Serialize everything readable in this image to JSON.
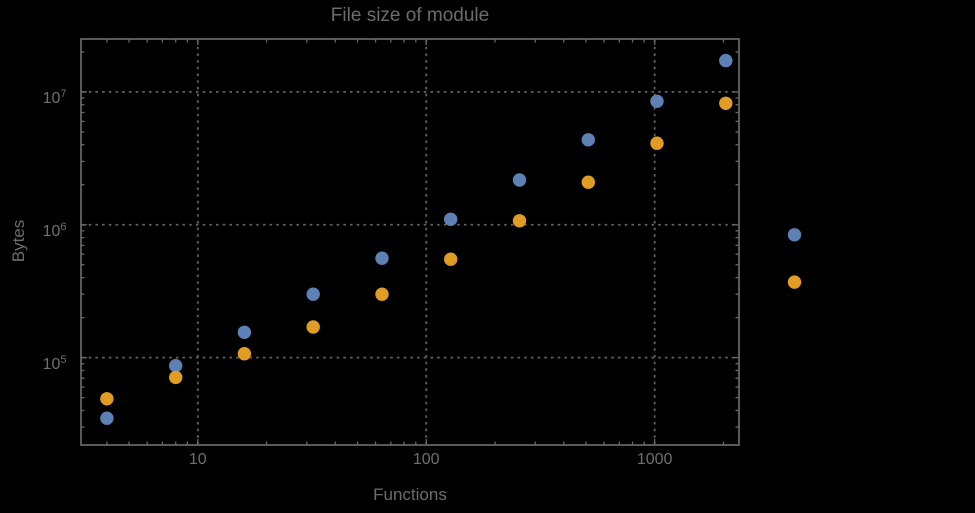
{
  "title": "File size of module",
  "colors": {
    "background": "#000000",
    "frame": "#696969",
    "grid": "#616161",
    "text": "#6c6c6c",
    "series1": "#5E81B5",
    "series2": "#E19C24"
  },
  "chart_data": {
    "type": "scatter",
    "title": "File size of module",
    "xlabel": "Functions",
    "ylabel": "Bytes",
    "xscale": "log",
    "yscale": "log",
    "xlim": [
      3.08,
      2340
    ],
    "ylim": [
      22000,
      25000000
    ],
    "grid": true,
    "legend": "none",
    "x": [
      4,
      8,
      16,
      32,
      64,
      128,
      256,
      512,
      1024,
      2048,
      4096
    ],
    "series": [
      {
        "name": "blue-series",
        "color": "#5E81B5",
        "values": [
          35000,
          87000,
          155000,
          300000,
          560000,
          1100000,
          2170000,
          4360000,
          8500000,
          17200000,
          840000
        ]
      },
      {
        "name": "orange-series",
        "color": "#E19C24",
        "values": [
          49000,
          71000,
          107000,
          170000,
          300000,
          550000,
          1070000,
          2090000,
          4110000,
          8200000,
          370000
        ]
      }
    ],
    "x_ticks": [
      {
        "value": 10,
        "label": "10"
      },
      {
        "value": 100,
        "label": "100"
      },
      {
        "value": 1000,
        "label": "1000"
      }
    ],
    "y_ticks": [
      {
        "value": 100000,
        "mantissa": "10",
        "exponent": "5"
      },
      {
        "value": 1000000,
        "mantissa": "10",
        "exponent": "6"
      },
      {
        "value": 10000000,
        "mantissa": "10",
        "exponent": "7"
      }
    ]
  }
}
